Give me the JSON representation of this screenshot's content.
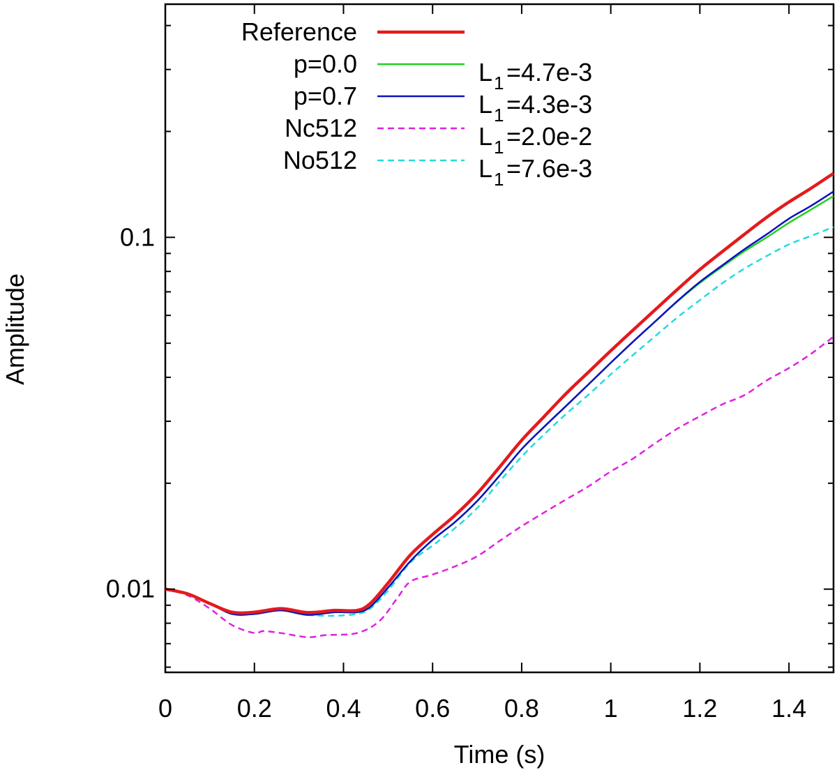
{
  "chart_data": {
    "type": "line",
    "title": "",
    "xlabel": "Time (s)",
    "ylabel": "Amplitude",
    "xscale": "linear",
    "yscale": "log",
    "xlim": [
      0,
      1.5
    ],
    "ylim": [
      0.0058,
      0.46
    ],
    "xticks": [
      {
        "value": 0,
        "label": "0"
      },
      {
        "value": 0.2,
        "label": "0.2"
      },
      {
        "value": 0.4,
        "label": "0.4"
      },
      {
        "value": 0.6,
        "label": "0.6"
      },
      {
        "value": 0.8,
        "label": "0.8"
      },
      {
        "value": 1.0,
        "label": "1"
      },
      {
        "value": 1.2,
        "label": "1.2"
      },
      {
        "value": 1.4,
        "label": "1.4"
      }
    ],
    "yticks": [
      {
        "value": 0.01,
        "label": "0.01"
      },
      {
        "value": 0.1,
        "label": "0.1"
      }
    ],
    "grid": false,
    "legend_position": "top-left",
    "series": [
      {
        "name": "Reference",
        "l1_prefix": "",
        "l1_sub": "",
        "l1_value": "",
        "color": "#e41a1c",
        "dash": "solid",
        "width": 4.5,
        "points": [
          [
            0,
            0.01
          ],
          [
            0.05,
            0.0097
          ],
          [
            0.1,
            0.0091
          ],
          [
            0.15,
            0.0086
          ],
          [
            0.2,
            0.0086
          ],
          [
            0.26,
            0.0088
          ],
          [
            0.32,
            0.00858
          ],
          [
            0.38,
            0.0087
          ],
          [
            0.43,
            0.0087
          ],
          [
            0.46,
            0.0091
          ],
          [
            0.5,
            0.0104
          ],
          [
            0.55,
            0.0125
          ],
          [
            0.6,
            0.0143
          ],
          [
            0.65,
            0.0162
          ],
          [
            0.7,
            0.0187
          ],
          [
            0.75,
            0.0222
          ],
          [
            0.8,
            0.0265
          ],
          [
            0.85,
            0.0309
          ],
          [
            0.9,
            0.036
          ],
          [
            0.95,
            0.0414
          ],
          [
            1.0,
            0.0476
          ],
          [
            1.05,
            0.0545
          ],
          [
            1.1,
            0.0623
          ],
          [
            1.15,
            0.0712
          ],
          [
            1.2,
            0.081
          ],
          [
            1.25,
            0.091
          ],
          [
            1.3,
            0.102
          ],
          [
            1.35,
            0.114
          ],
          [
            1.4,
            0.126
          ],
          [
            1.45,
            0.138
          ],
          [
            1.5,
            0.152
          ]
        ]
      },
      {
        "name": "p=0.0",
        "l1_prefix": "L",
        "l1_sub": "1",
        "l1_value": "=4.7e-3",
        "color": "#1fd11f",
        "dash": "solid",
        "width": 2.5,
        "points": [
          [
            0,
            0.01
          ],
          [
            0.05,
            0.0097
          ],
          [
            0.1,
            0.0091
          ],
          [
            0.15,
            0.0085
          ],
          [
            0.2,
            0.0085
          ],
          [
            0.26,
            0.0087
          ],
          [
            0.32,
            0.00845
          ],
          [
            0.38,
            0.0086
          ],
          [
            0.43,
            0.0086
          ],
          [
            0.46,
            0.0089
          ],
          [
            0.5,
            0.0101
          ],
          [
            0.55,
            0.012
          ],
          [
            0.6,
            0.0138
          ],
          [
            0.65,
            0.0155
          ],
          [
            0.7,
            0.0178
          ],
          [
            0.75,
            0.021
          ],
          [
            0.8,
            0.025
          ],
          [
            0.85,
            0.0289
          ],
          [
            0.9,
            0.0332
          ],
          [
            0.95,
            0.0382
          ],
          [
            1.0,
            0.044
          ],
          [
            1.05,
            0.0505
          ],
          [
            1.1,
            0.0577
          ],
          [
            1.15,
            0.0658
          ],
          [
            1.2,
            0.0742
          ],
          [
            1.25,
            0.0825
          ],
          [
            1.3,
            0.0913
          ],
          [
            1.35,
            0.1
          ],
          [
            1.4,
            0.11
          ],
          [
            1.45,
            0.12
          ],
          [
            1.5,
            0.131
          ]
        ]
      },
      {
        "name": "p=0.7",
        "l1_prefix": "L",
        "l1_sub": "1",
        "l1_value": "=4.3e-3",
        "color": "#1010c0",
        "dash": "solid",
        "width": 2.5,
        "points": [
          [
            0,
            0.01
          ],
          [
            0.05,
            0.0097
          ],
          [
            0.1,
            0.0091
          ],
          [
            0.15,
            0.0085
          ],
          [
            0.2,
            0.0085
          ],
          [
            0.26,
            0.0087
          ],
          [
            0.32,
            0.00845
          ],
          [
            0.38,
            0.0086
          ],
          [
            0.43,
            0.0086
          ],
          [
            0.46,
            0.0089
          ],
          [
            0.5,
            0.0101
          ],
          [
            0.55,
            0.012
          ],
          [
            0.6,
            0.0138
          ],
          [
            0.65,
            0.0155
          ],
          [
            0.7,
            0.0178
          ],
          [
            0.75,
            0.021
          ],
          [
            0.8,
            0.025
          ],
          [
            0.85,
            0.0289
          ],
          [
            0.9,
            0.0332
          ],
          [
            0.95,
            0.0382
          ],
          [
            1.0,
            0.044
          ],
          [
            1.05,
            0.0505
          ],
          [
            1.1,
            0.0577
          ],
          [
            1.15,
            0.066
          ],
          [
            1.2,
            0.0747
          ],
          [
            1.25,
            0.0832
          ],
          [
            1.3,
            0.0925
          ],
          [
            1.35,
            0.102
          ],
          [
            1.4,
            0.113
          ],
          [
            1.45,
            0.123
          ],
          [
            1.5,
            0.135
          ]
        ]
      },
      {
        "name": "Nc512",
        "l1_prefix": "L",
        "l1_sub": "1",
        "l1_value": "=2.0e-2",
        "color": "#e020e0",
        "dash": "dashed",
        "width": 2.5,
        "points": [
          [
            0,
            0.01
          ],
          [
            0.05,
            0.0096
          ],
          [
            0.1,
            0.0088
          ],
          [
            0.15,
            0.0079
          ],
          [
            0.2,
            0.0075
          ],
          [
            0.22,
            0.0076
          ],
          [
            0.26,
            0.0075
          ],
          [
            0.32,
            0.0073
          ],
          [
            0.36,
            0.0074
          ],
          [
            0.43,
            0.0075
          ],
          [
            0.48,
            0.0081
          ],
          [
            0.52,
            0.0094
          ],
          [
            0.55,
            0.0105
          ],
          [
            0.6,
            0.011
          ],
          [
            0.65,
            0.0116
          ],
          [
            0.7,
            0.0124
          ],
          [
            0.75,
            0.0137
          ],
          [
            0.8,
            0.0151
          ],
          [
            0.85,
            0.0165
          ],
          [
            0.9,
            0.018
          ],
          [
            0.95,
            0.0196
          ],
          [
            1.0,
            0.0216
          ],
          [
            1.05,
            0.0235
          ],
          [
            1.1,
            0.026
          ],
          [
            1.15,
            0.0286
          ],
          [
            1.2,
            0.031
          ],
          [
            1.25,
            0.0335
          ],
          [
            1.3,
            0.0356
          ],
          [
            1.35,
            0.0392
          ],
          [
            1.4,
            0.0425
          ],
          [
            1.45,
            0.0467
          ],
          [
            1.5,
            0.0522
          ]
        ]
      },
      {
        "name": "No512",
        "l1_prefix": "L",
        "l1_sub": "1",
        "l1_value": "=7.6e-3",
        "color": "#22dcdc",
        "dash": "dashed",
        "width": 2.5,
        "points": [
          [
            0,
            0.01
          ],
          [
            0.05,
            0.0097
          ],
          [
            0.1,
            0.0091
          ],
          [
            0.15,
            0.0086
          ],
          [
            0.2,
            0.0086
          ],
          [
            0.26,
            0.0087
          ],
          [
            0.32,
            0.00845
          ],
          [
            0.38,
            0.0084
          ],
          [
            0.43,
            0.0085
          ],
          [
            0.46,
            0.0088
          ],
          [
            0.5,
            0.0099
          ],
          [
            0.55,
            0.0119
          ],
          [
            0.6,
            0.0133
          ],
          [
            0.65,
            0.0149
          ],
          [
            0.7,
            0.017
          ],
          [
            0.75,
            0.0202
          ],
          [
            0.8,
            0.0238
          ],
          [
            0.85,
            0.0275
          ],
          [
            0.9,
            0.0315
          ],
          [
            0.95,
            0.0357
          ],
          [
            1.0,
            0.0408
          ],
          [
            1.05,
            0.0463
          ],
          [
            1.1,
            0.0524
          ],
          [
            1.15,
            0.0593
          ],
          [
            1.2,
            0.0663
          ],
          [
            1.25,
            0.074
          ],
          [
            1.3,
            0.0815
          ],
          [
            1.35,
            0.0885
          ],
          [
            1.4,
            0.0955
          ],
          [
            1.45,
            0.101
          ],
          [
            1.5,
            0.107
          ]
        ]
      }
    ]
  }
}
